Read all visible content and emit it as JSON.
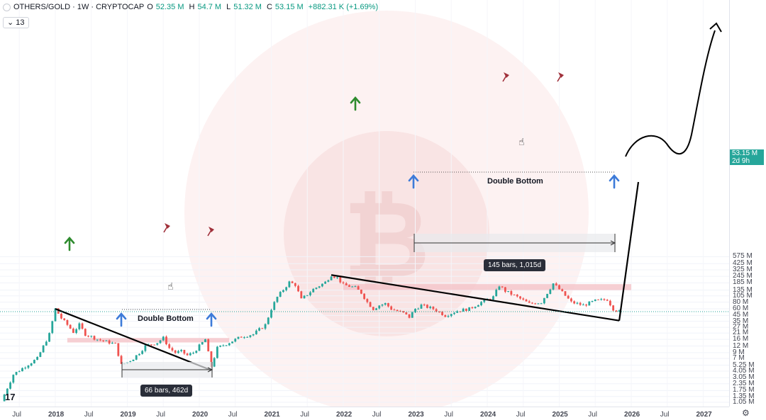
{
  "legend": {
    "symbol": "OTHERS/GOLD · 1W · CRYPTOCAP",
    "o_label": "O",
    "o_value": "52.35 M",
    "h_label": "H",
    "h_value": "54.7 M",
    "l_label": "L",
    "l_value": "51.32 M",
    "c_label": "C",
    "c_value": "53.15 M",
    "change": "+882.31 K (+1.69%)"
  },
  "indicator_count": "13",
  "price_tag": {
    "price": "53.15 M",
    "countdown": "2d 9h"
  },
  "annotations": {
    "double_bottom_left": "Double Bottom",
    "double_bottom_right": "Double Bottom",
    "measure_left": "66 bars, 462d",
    "measure_right": "145 bars, 1,015d"
  },
  "colors": {
    "up": "#26a69a",
    "down": "#ef5350",
    "zone": "#f4c7cb",
    "arrow_up": "#3d7bd9",
    "arrow_green": "#2e8b2e",
    "flag": "#a0303a"
  },
  "icons": [
    "tradingview-logo-icon",
    "settings-gear-icon",
    "hand-pointer-icon",
    "flag-icon",
    "up-arrow-icon",
    "bitcoin-watermark-icon"
  ],
  "chart_data": {
    "type": "candlestick",
    "title": "OTHERS/GOLD · 1W · CRYPTOCAP",
    "y_scale": "log",
    "y_ticks": [
      "1.05 M",
      "1.35 M",
      "1.75 M",
      "2.35 M",
      "3.05 M",
      "4.05 M",
      "5.25 M",
      "7 M",
      "9 M",
      "12 M",
      "16 M",
      "21 M",
      "27 M",
      "35 M",
      "45 M",
      "60 M",
      "80 M",
      "105 M",
      "135 M",
      "185 M",
      "245 M",
      "325 M",
      "425 M",
      "575 M"
    ],
    "x_ticks": [
      "Jul",
      "2018",
      "Jul",
      "2019",
      "Jul",
      "2020",
      "Jul",
      "2021",
      "Jul",
      "2022",
      "Jul",
      "2023",
      "Jul",
      "2024",
      "Jul",
      "2025",
      "Jul",
      "2026",
      "Jul",
      "2027"
    ],
    "path_points": [
      [
        "2017-04",
        1.1
      ],
      [
        "2017-06",
        3.5
      ],
      [
        "2017-08",
        5
      ],
      [
        "2017-10",
        7
      ],
      [
        "2017-12",
        20
      ],
      [
        "2018-01",
        60
      ],
      [
        "2018-02",
        40
      ],
      [
        "2018-03",
        30
      ],
      [
        "2018-04",
        22
      ],
      [
        "2018-05",
        30
      ],
      [
        "2018-06",
        20
      ],
      [
        "2018-07",
        18
      ],
      [
        "2018-08",
        16
      ],
      [
        "2018-09",
        15
      ],
      [
        "2018-10",
        14
      ],
      [
        "2018-11",
        13
      ],
      [
        "2018-12",
        5.3
      ],
      [
        "2019-01",
        6
      ],
      [
        "2019-02",
        7
      ],
      [
        "2019-03",
        9
      ],
      [
        "2019-04",
        12
      ],
      [
        "2019-05",
        13
      ],
      [
        "2019-06",
        14
      ],
      [
        "2019-07",
        17
      ],
      [
        "2019-08",
        11
      ],
      [
        "2019-09",
        9
      ],
      [
        "2019-10",
        9.5
      ],
      [
        "2019-11",
        8
      ],
      [
        "2019-12",
        9
      ],
      [
        "2020-02",
        16
      ],
      [
        "2020-03",
        5
      ],
      [
        "2020-04",
        11
      ],
      [
        "2020-06",
        14
      ],
      [
        "2020-08",
        18
      ],
      [
        "2020-10",
        20
      ],
      [
        "2020-12",
        30
      ],
      [
        "2021-01",
        60
      ],
      [
        "2021-02",
        100
      ],
      [
        "2021-04",
        190
      ],
      [
        "2021-05",
        170
      ],
      [
        "2021-06",
        90
      ],
      [
        "2021-08",
        140
      ],
      [
        "2021-10",
        190
      ],
      [
        "2021-11",
        260
      ],
      [
        "2021-12",
        230
      ],
      [
        "2022-01",
        170
      ],
      [
        "2022-03",
        150
      ],
      [
        "2022-04",
        120
      ],
      [
        "2022-05",
        80
      ],
      [
        "2022-06",
        60
      ],
      [
        "2022-07",
        70
      ],
      [
        "2022-08",
        75
      ],
      [
        "2022-09",
        60
      ],
      [
        "2022-11",
        50
      ],
      [
        "2022-12",
        42
      ],
      [
        "2023-01",
        60
      ],
      [
        "2023-02",
        70
      ],
      [
        "2023-04",
        60
      ],
      [
        "2023-06",
        45
      ],
      [
        "2023-08",
        55
      ],
      [
        "2023-10",
        60
      ],
      [
        "2023-12",
        80
      ],
      [
        "2024-02",
        100
      ],
      [
        "2024-03",
        165
      ],
      [
        "2024-04",
        130
      ],
      [
        "2024-06",
        100
      ],
      [
        "2024-08",
        75
      ],
      [
        "2024-10",
        80
      ],
      [
        "2024-12",
        180
      ],
      [
        "2025-01",
        140
      ],
      [
        "2025-03",
        80
      ],
      [
        "2025-05",
        70
      ],
      [
        "2025-07",
        85
      ],
      [
        "2025-09",
        90
      ],
      [
        "2025-10",
        60
      ],
      [
        "2025-11",
        53.15
      ]
    ],
    "last": {
      "open": 52.35,
      "high": 54.7,
      "low": 51.32,
      "close": 53.15,
      "change": "+882.31 K (+1.69%)"
    },
    "drawings": {
      "trendlines": [
        {
          "from": [
            "2018-01",
            60
          ],
          "to": [
            "2020-03",
            4.2
          ]
        },
        {
          "from": [
            "2021-11",
            260
          ],
          "to": [
            "2025-11",
            36
          ]
        }
      ],
      "resistance_zones": [
        {
          "from": "2018-03",
          "to": "2020-06",
          "low": 14,
          "high": 17
        },
        {
          "from": "2022-01",
          "to": "2026-01",
          "low": 135,
          "high": 175
        }
      ],
      "projection": "down then sharply up to ~425 M by 2027"
    }
  }
}
